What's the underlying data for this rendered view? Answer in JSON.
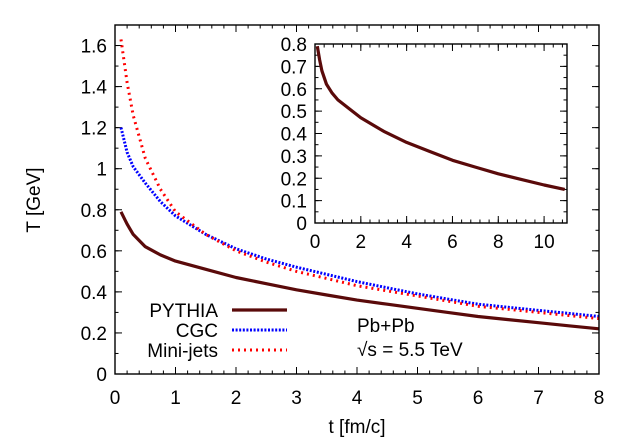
{
  "chart_data": {
    "type": "line",
    "main": {
      "xlabel": "t [fm/c]",
      "ylabel": "T [GeV]",
      "xlim": [
        0,
        8
      ],
      "ylim": [
        0,
        1.7
      ],
      "xticks": [
        "0",
        "1",
        "2",
        "3",
        "4",
        "5",
        "6",
        "7",
        "8"
      ],
      "yticks": [
        "0",
        "0.2",
        "0.4",
        "0.6",
        "0.8",
        "1",
        "1.2",
        "1.4",
        "1.6"
      ],
      "grid": false,
      "legend_position": "lower left",
      "series": [
        {
          "name": "PYTHIA",
          "style": "solid",
          "color": "#5a0a0a",
          "x": [
            0.1,
            0.2,
            0.3,
            0.5,
            0.75,
            1,
            1.5,
            2,
            2.5,
            3,
            3.5,
            4,
            4.5,
            5,
            5.5,
            6,
            6.5,
            7,
            7.5,
            8
          ],
          "y": [
            0.79,
            0.73,
            0.68,
            0.62,
            0.58,
            0.55,
            0.51,
            0.47,
            0.44,
            0.41,
            0.385,
            0.36,
            0.34,
            0.32,
            0.3,
            0.28,
            0.265,
            0.25,
            0.235,
            0.22
          ]
        },
        {
          "name": "CGC",
          "style": "dotted",
          "color": "#0000ff",
          "x": [
            0.1,
            0.2,
            0.3,
            0.5,
            0.75,
            1,
            1.5,
            2,
            2.5,
            3,
            3.5,
            4,
            4.5,
            5,
            5.5,
            6,
            6.5,
            7,
            7.5,
            8
          ],
          "y": [
            1.2,
            1.08,
            1.01,
            0.93,
            0.84,
            0.77,
            0.68,
            0.61,
            0.56,
            0.52,
            0.485,
            0.45,
            0.42,
            0.39,
            0.365,
            0.34,
            0.325,
            0.31,
            0.295,
            0.28
          ]
        },
        {
          "name": "Mini-jets",
          "style": "dashed",
          "color": "#ff0000",
          "x": [
            0.1,
            0.2,
            0.3,
            0.5,
            0.75,
            1,
            1.5,
            2,
            2.5,
            3,
            3.5,
            4,
            4.5,
            5,
            5.5,
            6,
            6.5,
            7,
            7.5,
            8
          ],
          "y": [
            1.63,
            1.42,
            1.26,
            1.05,
            0.9,
            0.79,
            0.68,
            0.6,
            0.545,
            0.5,
            0.465,
            0.43,
            0.405,
            0.38,
            0.355,
            0.33,
            0.315,
            0.3,
            0.285,
            0.27
          ]
        }
      ],
      "annotations": [
        "Pb+Pb",
        "√s = 5.5 TeV"
      ]
    },
    "inset": {
      "xlim": [
        0,
        11
      ],
      "ylim": [
        0,
        0.8
      ],
      "xticks": [
        "0",
        "2",
        "4",
        "6",
        "8",
        "10"
      ],
      "yticks": [
        "0",
        "0.1",
        "0.2",
        "0.3",
        "0.4",
        "0.5",
        "0.6",
        "0.7",
        "0.8"
      ],
      "series": [
        {
          "name": "PYTHIA",
          "style": "solid",
          "color": "#5a0a0a",
          "x": [
            0.1,
            0.2,
            0.3,
            0.5,
            0.75,
            1,
            1.5,
            2,
            3,
            4,
            5,
            6,
            7,
            8,
            9,
            10,
            10.9
          ],
          "y": [
            0.79,
            0.73,
            0.68,
            0.62,
            0.58,
            0.55,
            0.51,
            0.47,
            0.41,
            0.36,
            0.32,
            0.28,
            0.25,
            0.22,
            0.195,
            0.17,
            0.15
          ]
        }
      ]
    }
  },
  "legend": {
    "items": [
      {
        "label": "PYTHIA"
      },
      {
        "label": "CGC"
      },
      {
        "label": "Mini-jets"
      }
    ]
  },
  "annotation": {
    "line1": "Pb+Pb",
    "line2": "√s = 5.5 TeV"
  },
  "axes": {
    "xlabel": "t [fm/c]",
    "ylabel": "T [GeV]"
  }
}
